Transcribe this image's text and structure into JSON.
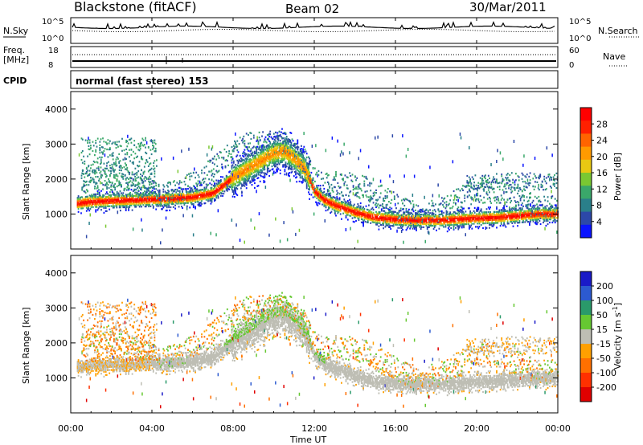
{
  "header": {
    "station": "Blackstone (fitACF)",
    "beam": "Beam 02",
    "date": "30/Mar/2011"
  },
  "strip": {
    "nsky_label": "N.Sky",
    "nsky_ticks": [
      "10^5",
      "10^0"
    ],
    "nsearch_label": "N.Search",
    "nsearch_ticks": [
      "10^5",
      "10^0"
    ],
    "freq_label_1": "Freq.",
    "freq_label_2": "[MHz]",
    "freq_ticks": [
      "18",
      "8"
    ],
    "nave_label": "Nave",
    "nave_ticks": [
      "60",
      "0"
    ],
    "cpid_label": "CPID",
    "cpid_text": "normal (fast stereo) 153"
  },
  "chart_data": [
    {
      "type": "heatmap",
      "name": "power",
      "ylabel": "Slant Range [km]",
      "yticks": [
        "1000",
        "2000",
        "3000",
        "4000"
      ],
      "ylim": [
        0,
        4500
      ],
      "colorbar": {
        "label": "Power [dB]",
        "ticks": [
          "4",
          "8",
          "12",
          "16",
          "20",
          "24",
          "28"
        ],
        "colors": [
          "#0a14ff",
          "#2c48a8",
          "#2a7f8a",
          "#3aa86a",
          "#7ac832",
          "#e8c812",
          "#ff9a00",
          "#ff6400",
          "#ff2000",
          "#ff0000"
        ]
      },
      "bands": [
        {
          "t": [
            0.3,
            1,
            2,
            3,
            4,
            5,
            6,
            7,
            8,
            9,
            10,
            10.5,
            11,
            11.5,
            12,
            12.5,
            13,
            14,
            15,
            16,
            17,
            18,
            19,
            20,
            21,
            22,
            23,
            24
          ],
          "r": [
            1300,
            1350,
            1380,
            1400,
            1420,
            1440,
            1480,
            1600,
            2050,
            2400,
            2750,
            2800,
            2600,
            2300,
            1650,
            1400,
            1250,
            1050,
            900,
            850,
            820,
            820,
            850,
            880,
            900,
            950,
            1000,
            1000
          ],
          "halfwidth": 150,
          "peak": 26
        }
      ],
      "spread_f": {
        "t0": 0.5,
        "t1": 4.2,
        "r0": 1500,
        "r1": 3200,
        "power": 6
      }
    },
    {
      "type": "heatmap",
      "name": "velocity",
      "ylabel": "Slant Range [km]",
      "yticks": [
        "1000",
        "2000",
        "3000",
        "4000"
      ],
      "ylim": [
        0,
        4500
      ],
      "colorbar": {
        "label": "Velocity [m s",
        "label_sup": "-1",
        "label_end": "]",
        "ticks": [
          "200",
          "100",
          "50",
          "15",
          "-15",
          "-50",
          "-100",
          "-200"
        ],
        "colors": [
          "#1a1ac8",
          "#2c5ad0",
          "#2a9a6a",
          "#66c832",
          "#bebeb4",
          "#ffa000",
          "#ff7000",
          "#ff3000",
          "#e00000"
        ]
      },
      "xlabel": "Time UT",
      "xticks": [
        "00:00",
        "04:00",
        "08:00",
        "12:00",
        "16:00",
        "20:00",
        "00:00"
      ],
      "xlim": [
        0,
        24
      ]
    }
  ]
}
